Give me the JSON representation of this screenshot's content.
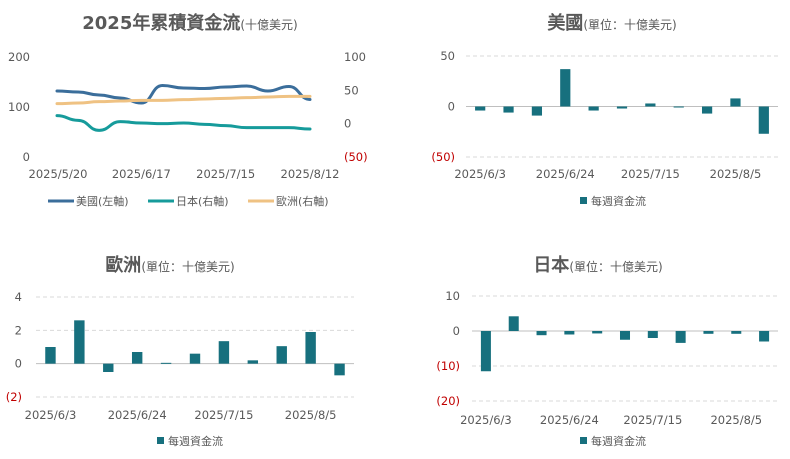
{
  "colors": {
    "us": "#3b6e9b",
    "jp": "#169b9b",
    "eu": "#efc283",
    "bar": "#17707e",
    "neg": "#c00000"
  },
  "chart_data": [
    {
      "id": "cumulative",
      "type": "line",
      "title": "2025年累積資金流",
      "subtitle": "(十億美元)",
      "x": [
        "2025/5/20",
        "2025/5/27",
        "2025/6/3",
        "2025/6/10",
        "2025/6/17",
        "2025/6/24",
        "2025/7/1",
        "2025/7/8",
        "2025/7/15",
        "2025/7/22",
        "2025/7/29",
        "2025/8/5",
        "2025/8/12"
      ],
      "xticks": [
        "2025/5/20",
        "2025/6/17",
        "2025/7/15",
        "2025/8/12"
      ],
      "left_axis": {
        "ylim": [
          0,
          200
        ],
        "ticks": [
          "0",
          "100",
          "200"
        ]
      },
      "right_axis": {
        "ylim": [
          -50,
          100
        ],
        "ticks": [
          "(50)",
          "0",
          "50",
          "100"
        ]
      },
      "series": [
        {
          "name": "美國(左軸)",
          "axis": "left",
          "color": "#3b6e9b",
          "values": [
            132,
            130,
            124,
            118,
            108,
            143,
            138,
            137,
            140,
            142,
            132,
            141,
            115
          ]
        },
        {
          "name": "日本(右軸)",
          "axis": "right",
          "color": "#169b9b",
          "values": [
            12,
            5,
            -10,
            3,
            1,
            0,
            1,
            -1,
            -3,
            -6,
            -6,
            -6,
            -8
          ]
        },
        {
          "name": "歐洲(右軸)",
          "axis": "right",
          "color": "#efc283",
          "values": [
            30,
            31,
            33,
            34,
            35,
            35,
            36,
            37,
            38,
            39,
            40,
            41,
            41
          ]
        }
      ]
    },
    {
      "id": "us",
      "type": "bar",
      "title": "美國",
      "subtitle": "(單位：十億美元)",
      "categories": [
        "2025/6/3",
        "2025/6/10",
        "2025/6/17",
        "2025/6/24",
        "2025/7/1",
        "2025/7/8",
        "2025/7/15",
        "2025/7/22",
        "2025/7/29",
        "2025/8/5",
        "2025/8/12"
      ],
      "xticks": [
        "2025/6/3",
        "2025/6/24",
        "2025/7/15",
        "2025/8/5"
      ],
      "values": [
        -4,
        -6,
        -9,
        37,
        -4,
        -2,
        3,
        -1,
        -7,
        8,
        -27
      ],
      "ylim": [
        -50,
        50
      ],
      "yticks": [
        "(50)",
        "0",
        "50"
      ],
      "legend": "每週資金流"
    },
    {
      "id": "eu",
      "type": "bar",
      "title": "歐洲",
      "subtitle": "(單位：十億美元)",
      "categories": [
        "2025/6/3",
        "2025/6/10",
        "2025/6/17",
        "2025/6/24",
        "2025/7/1",
        "2025/7/8",
        "2025/7/15",
        "2025/7/22",
        "2025/7/29",
        "2025/8/5",
        "2025/8/12"
      ],
      "xticks": [
        "2025/6/3",
        "2025/6/24",
        "2025/7/15",
        "2025/8/5"
      ],
      "values": [
        1.0,
        2.6,
        -0.5,
        0.7,
        0.05,
        0.6,
        1.35,
        0.2,
        1.05,
        1.9,
        -0.7
      ],
      "ylim": [
        -2,
        4
      ],
      "yticks": [
        "(2)",
        "0",
        "2",
        "4"
      ],
      "legend": "每週資金流"
    },
    {
      "id": "jp",
      "type": "bar",
      "title": "日本",
      "subtitle": "(單位：十億美元)",
      "categories": [
        "2025/6/3",
        "2025/6/10",
        "2025/6/17",
        "2025/6/24",
        "2025/7/1",
        "2025/7/8",
        "2025/7/15",
        "2025/7/22",
        "2025/7/29",
        "2025/8/5",
        "2025/8/12"
      ],
      "xticks": [
        "2025/6/3",
        "2025/6/24",
        "2025/7/15",
        "2025/8/5"
      ],
      "values": [
        -11.5,
        4.2,
        -1.2,
        -1.0,
        -0.7,
        -2.5,
        -2.0,
        -3.4,
        -0.8,
        -0.8,
        -3.0
      ],
      "ylim": [
        -20,
        10
      ],
      "yticks": [
        "(20)",
        "(10)",
        "0",
        "10"
      ],
      "legend": "每週資金流"
    }
  ]
}
